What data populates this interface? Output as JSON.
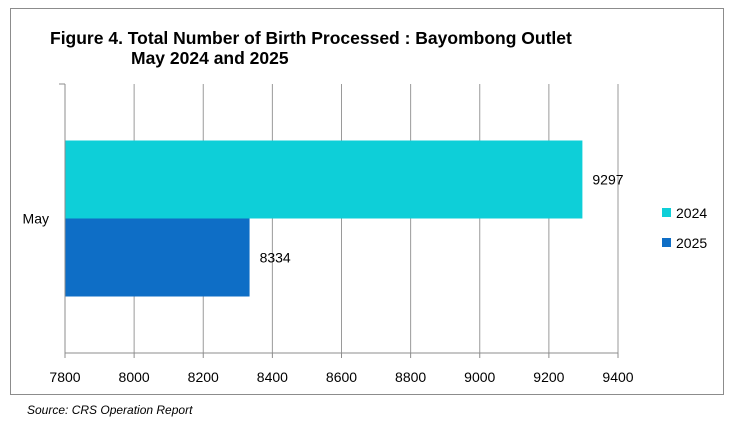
{
  "chart_data": {
    "type": "bar",
    "orientation": "horizontal",
    "title": "Figure 4. Total Number of Birth Processed : Bayombong Outlet",
    "subtitle": "May 2024 and 2025",
    "categories": [
      "May"
    ],
    "series": [
      {
        "name": "2024",
        "values": [
          9297
        ],
        "color": "#0ecfd8"
      },
      {
        "name": "2025",
        "values": [
          8334
        ],
        "color": "#0e6ec6"
      }
    ],
    "xlim": [
      7800,
      9400
    ],
    "xticks": [
      7800,
      8000,
      8200,
      8400,
      8600,
      8800,
      9000,
      9200,
      9400
    ],
    "grid": true,
    "legend": "right",
    "xlabel": "",
    "ylabel": ""
  },
  "source": "Source: CRS Operation Report"
}
